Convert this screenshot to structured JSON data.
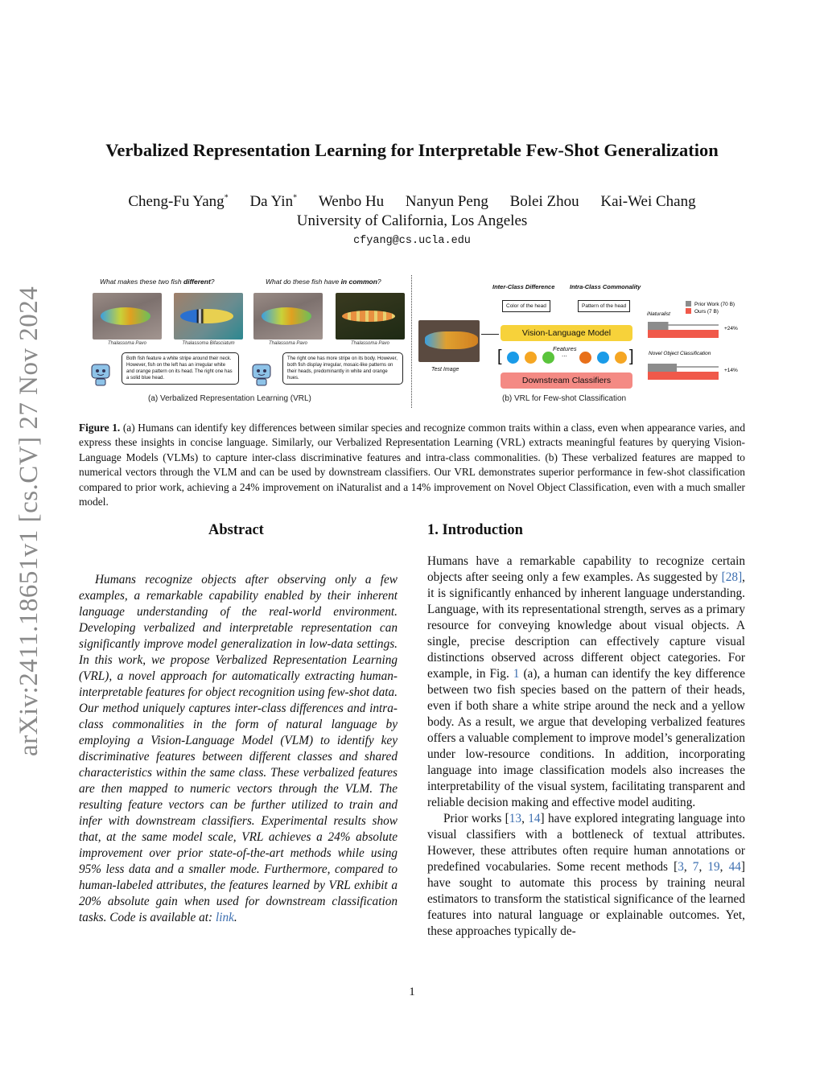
{
  "title": "Verbalized Representation Learning for Interpretable Few-Shot Generalization",
  "authors": [
    {
      "name": "Cheng-Fu Yang",
      "mark": "*"
    },
    {
      "name": "Da Yin",
      "mark": "*"
    },
    {
      "name": "Wenbo Hu",
      "mark": ""
    },
    {
      "name": "Nanyun Peng",
      "mark": ""
    },
    {
      "name": "Bolei Zhou",
      "mark": ""
    },
    {
      "name": "Kai-Wei Chang",
      "mark": ""
    }
  ],
  "affiliation": "University of California, Los Angeles",
  "email": "cfyang@cs.ucla.edu",
  "arxiv_stamp": "arXiv:2411.18651v1  [cs.CV]  27 Nov 2024",
  "figure": {
    "a": {
      "q1_pre": "What makes these two fish ",
      "q1_bold": "different",
      "q1_post": "?",
      "q2_pre": "What do these fish have ",
      "q2_bold": "in common",
      "q2_post": "?",
      "labels": [
        "Thalassoma Pavo",
        "Thalassoma Bifasciatum",
        "Thalassoma Pavo",
        "Thalassoma Pavo"
      ],
      "bubble1": "Both fish feature a white stripe around their neck. However, fish on the left has an irregular white and orange pattern on its head. The right one has a solid blue head.",
      "bubble2": "The right one has more stripe on its body. However, both fish display irregular, mosaic-like patterns on their heads, predominantly in white and orange hues.",
      "caption": "(a) Verbalized Representation Learning (VRL)"
    },
    "b": {
      "inter": "Inter-Class Difference",
      "intra": "Intra-Class Commonality",
      "box1": "Color of the head",
      "box2": "Pattern of the head",
      "vlm": "Vision-Language Model",
      "features": "Features",
      "ellipsis": "...",
      "classifiers": "Downstream Classifiers",
      "test_image": "Test Image",
      "caption": "(b) VRL for Few-shot Classification",
      "dot_colors": [
        "#1a9be8",
        "#f5a623",
        "#5ac43c",
        "#e8701a",
        "#1a9be8",
        "#f5a623"
      ],
      "vlm_color": "#f7d23a",
      "cls_color": "#f48a84"
    },
    "chart_data": {
      "type": "bar",
      "orientation": "horizontal",
      "legend": [
        {
          "name": "Prior Work (70 B)",
          "color": "#8c8c8c"
        },
        {
          "name": "Ours (7 B)",
          "color": "#f0594a"
        }
      ],
      "groups": [
        {
          "label": "iNaturalist",
          "values": [
            0.29,
            1.0
          ],
          "gain": "+24%"
        },
        {
          "label": "Novel Object Classification",
          "values": [
            0.41,
            1.0
          ],
          "gain": "+14%"
        }
      ]
    }
  },
  "caption": {
    "label": "Figure 1.",
    "text": "(a) Humans can identify key differences between similar species and recognize common traits within a class, even when appearance varies, and express these insights in concise language. Similarly, our Verbalized Representation Learning (VRL) extracts meaningful features by querying Vision-Language Models (VLMs) to capture inter-class discriminative features and intra-class commonalities. (b) These verbalized features are mapped to numerical vectors through the VLM and can be used by downstream classifiers. Our VRL demonstrates superior performance in few-shot classification compared to prior work, achieving a 24% improvement on iNaturalist and a 14% improvement on Novel Object Classification, even with a much smaller model."
  },
  "abstract": {
    "heading": "Abstract",
    "text": "Humans recognize objects after observing only a few examples, a remarkable capability enabled by their inherent language understanding of the real-world environment. Developing verbalized and interpretable representation can significantly improve model generalization in low-data settings. In this work, we propose Verbalized Representation Learning (VRL), a novel approach for automatically extracting human-interpretable features for object recognition using few-shot data. Our method uniquely captures inter-class differences and intra-class commonalities in the form of natural language by employing a Vision-Language Model (VLM) to identify key discriminative features between different classes and shared characteristics within the same class. These verbalized features are then mapped to numeric vectors through the VLM. The resulting feature vectors can be further utilized to train and infer with downstream classifiers. Experimental results show that, at the same model scale, VRL achieves a 24% absolute improvement over prior state-of-the-art methods while using 95% less data and a smaller mode. Furthermore, compared to human-labeled attributes, the features learned by VRL exhibit a 20% absolute gain when used for downstream classification tasks. Code is available at: ",
    "link": "link",
    "end": "."
  },
  "intro": {
    "heading": "1. Introduction",
    "p1": [
      "Humans have a remarkable capability to recognize certain objects after seeing only a few examples. As suggested by ",
      "[28]",
      ", it is significantly enhanced by inherent language understanding. Language, with its representational strength, serves as a primary resource for conveying knowledge about visual objects. A single, precise description can effectively capture visual distinctions observed across different object categories. For example, in Fig. ",
      "1",
      " (a), a human can identify the key difference between two fish species based on the pattern of their heads, even if both share a white stripe around the neck and a yellow body. As a result, we argue that developing verbalized features offers a valuable complement to improve model’s generalization under low-resource conditions. In addition, incorporating language into image classification models also increases the interpretability of the visual system, facilitating transparent and reliable decision making and effective model auditing."
    ],
    "p2": [
      "Prior works [",
      "13",
      ", ",
      "14",
      "] have explored integrating language into visual classifiers with a bottleneck of textual attributes. However, these attributes often require human annotations or predefined vocabularies. Some recent methods [",
      "3",
      ", ",
      "7",
      ", ",
      "19",
      ", ",
      "44",
      "] have sought to automate this process by training neural estimators to transform the statistical significance of the learned features into natural language or explainable outcomes. Yet, these approaches typically de-"
    ]
  },
  "page_number": "1"
}
